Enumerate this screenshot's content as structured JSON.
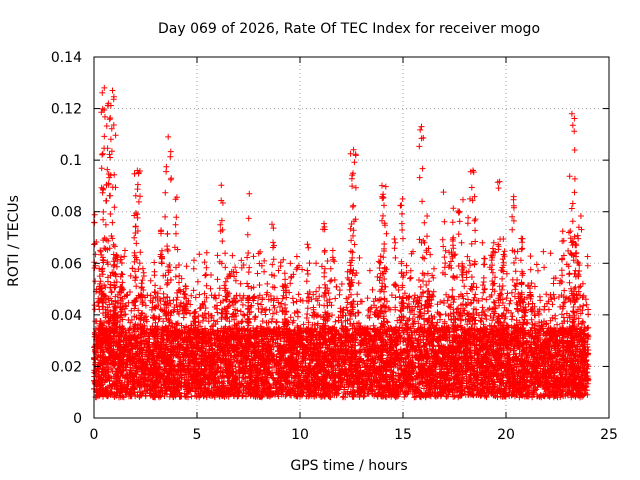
{
  "chart_data": {
    "type": "scatter",
    "title": "Day 069 of 2026, Rate Of TEC Index for receiver mogo",
    "xlabel": "GPS time / hours",
    "ylabel": "ROTI / TECUs",
    "xlim": [
      0,
      25
    ],
    "ylim": [
      0,
      0.14
    ],
    "xticks": [
      0,
      5,
      10,
      15,
      20,
      25
    ],
    "yticks": [
      0,
      0.02,
      0.04,
      0.06,
      0.08,
      0.1,
      0.12,
      0.14
    ],
    "xtick_labels": [
      "0",
      "5",
      "10",
      "15",
      "20",
      "25"
    ],
    "ytick_labels": [
      "0",
      "0.02",
      "0.04",
      "0.06",
      "0.08",
      "0.1",
      "0.12",
      "0.14"
    ],
    "grid": true,
    "marker": "+",
    "color": "#ff0000",
    "data_x_range": [
      0,
      24
    ],
    "baseline_band": [
      0.008,
      0.035
    ],
    "series": [
      {
        "name": "ROTI",
        "notable_peaks": [
          {
            "x": 0.3,
            "y": 0.065
          },
          {
            "x": 0.5,
            "y": 0.128
          },
          {
            "x": 0.7,
            "y": 0.122
          },
          {
            "x": 0.9,
            "y": 0.127
          },
          {
            "x": 2.1,
            "y": 0.096
          },
          {
            "x": 3.6,
            "y": 0.109
          },
          {
            "x": 12.6,
            "y": 0.104
          },
          {
            "x": 15.9,
            "y": 0.113
          },
          {
            "x": 18.4,
            "y": 0.096
          },
          {
            "x": 23.2,
            "y": 0.118
          }
        ]
      }
    ]
  }
}
